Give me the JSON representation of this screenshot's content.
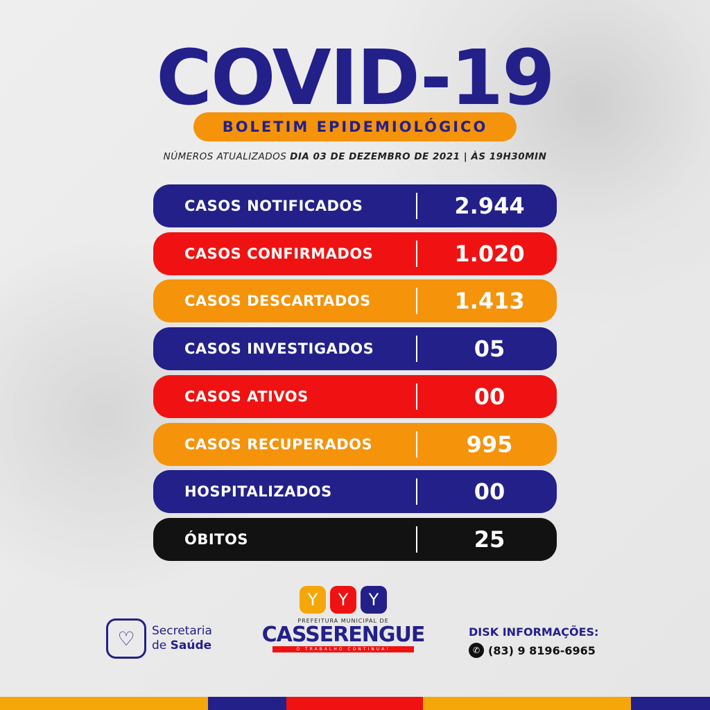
{
  "title": "COVID-19",
  "subtitle": "BOLETIM EPIDEMIOLÓGICO",
  "updated": {
    "prefix": "NÚMEROS ATUALIZADOS",
    "date": "DIA 03 DE DEZEMBRO DE 2021 | ÀS 19H30MIN"
  },
  "rows": [
    {
      "label": "CASOS NOTIFICADOS",
      "value": "2.944",
      "color": "#23208a"
    },
    {
      "label": "CASOS CONFIRMADOS",
      "value": "1.020",
      "color": "#f01212"
    },
    {
      "label": "CASOS DESCARTADOS",
      "value": "1.413",
      "color": "#f5930a"
    },
    {
      "label": "CASOS INVESTIGADOS",
      "value": "05",
      "color": "#23208a"
    },
    {
      "label": "CASOS ATIVOS",
      "value": "00",
      "color": "#f01212"
    },
    {
      "label": "CASOS RECUPERADOS",
      "value": "995",
      "color": "#f5930a"
    },
    {
      "label": "HOSPITALIZADOS",
      "value": "00",
      "color": "#23208a"
    },
    {
      "label": "ÓBITOS",
      "value": "25",
      "color": "#121212"
    }
  ],
  "footer": {
    "secretaria": {
      "line1": "Secretaria",
      "line2a": "de ",
      "line2b": "Saúde",
      "icon": "heart-shield-icon"
    },
    "prefeitura": {
      "pre": "PREFEITURA MUNICIPAL DE",
      "city": "CASSERENGUE",
      "slogan": "O TRABALHO CONTINUA!"
    },
    "disk": {
      "heading": "DISK INFORMAÇÕES:",
      "phone": "(83) 9 8196-6965",
      "icon": "whatsapp-icon"
    }
  }
}
